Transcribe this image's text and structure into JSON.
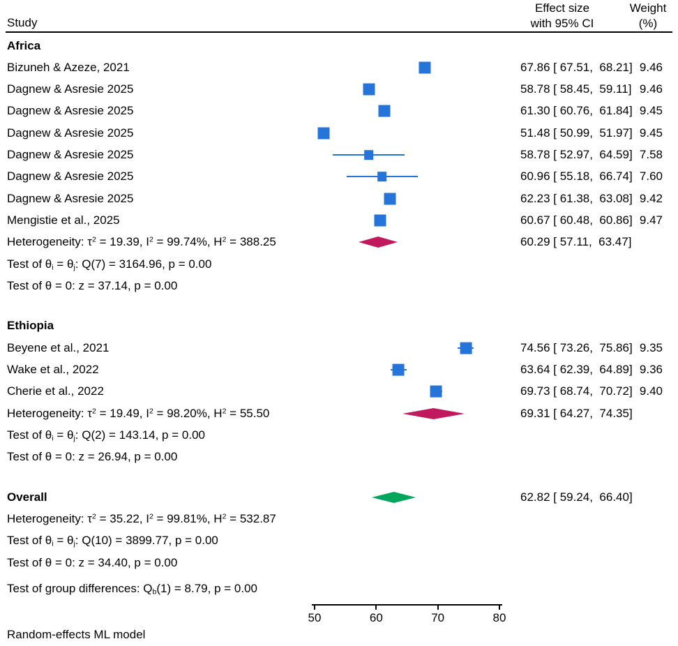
{
  "header": {
    "study_label": "Study",
    "effect_label_line1": "Effect size",
    "effect_label_line2": "with 95% CI",
    "weight_label_line1": "Weight",
    "weight_label_line2": "(%)"
  },
  "footer": {
    "model_label": "Random-effects ML model"
  },
  "colors": {
    "marker": "#2574d9",
    "subgroup_diamond": "#c0195e",
    "overall_diamond": "#00a65c",
    "axis": "#000000"
  },
  "chart_data": {
    "type": "forest",
    "x_axis": {
      "ticks": [
        50,
        60,
        70,
        80
      ],
      "min": 50,
      "max": 80
    },
    "groups": [
      {
        "name": "Africa",
        "studies": [
          {
            "label": "Bizuneh & Azeze, 2021",
            "effect": 67.86,
            "lo": 67.51,
            "hi": 68.21,
            "ci_text": "67.86 [ 67.51,  68.21]",
            "weight": "9.46"
          },
          {
            "label": "Dagnew & Asresie 2025",
            "effect": 58.78,
            "lo": 58.45,
            "hi": 59.11,
            "ci_text": "58.78 [ 58.45,  59.11]",
            "weight": "9.46"
          },
          {
            "label": "Dagnew & Asresie 2025",
            "effect": 61.3,
            "lo": 60.76,
            "hi": 61.84,
            "ci_text": "61.30 [ 60.76,  61.84]",
            "weight": "9.45"
          },
          {
            "label": "Dagnew & Asresie 2025",
            "effect": 51.48,
            "lo": 50.99,
            "hi": 51.97,
            "ci_text": "51.48 [ 50.99,  51.97]",
            "weight": "9.45"
          },
          {
            "label": "Dagnew & Asresie 2025",
            "effect": 58.78,
            "lo": 52.97,
            "hi": 64.59,
            "ci_text": "58.78 [ 52.97,  64.59]",
            "weight": "7.58"
          },
          {
            "label": "Dagnew & Asresie 2025",
            "effect": 60.96,
            "lo": 55.18,
            "hi": 66.74,
            "ci_text": "60.96 [ 55.18,  66.74]",
            "weight": "7.60"
          },
          {
            "label": "Dagnew & Asresie 2025",
            "effect": 62.23,
            "lo": 61.38,
            "hi": 63.08,
            "ci_text": "62.23 [ 61.38,  63.08]",
            "weight": "9.42"
          },
          {
            "label": "Mengistie et al., 2025",
            "effect": 60.67,
            "lo": 60.48,
            "hi": 60.86,
            "ci_text": "60.67 [ 60.48,  60.86]",
            "weight": "9.47"
          }
        ],
        "summary": {
          "heterogeneity": "Heterogeneity: τ{sup:2} = 19.39, I{sup:2} = 99.74%, H{sup:2} = 388.25",
          "effect": 60.29,
          "lo": 57.11,
          "hi": 63.47,
          "ci_text": "60.29 [ 57.11,  63.47]",
          "tests": [
            "Test of θ{sub:i} = θ{sub:j}: Q(7) = 3164.96, p = 0.00",
            "Test of θ = 0: z = 37.14, p = 0.00"
          ]
        }
      },
      {
        "name": "Ethiopia",
        "studies": [
          {
            "label": "Beyene et al., 2021",
            "effect": 74.56,
            "lo": 73.26,
            "hi": 75.86,
            "ci_text": "74.56 [ 73.26,  75.86]",
            "weight": "9.35"
          },
          {
            "label": "Wake et al., 2022",
            "effect": 63.64,
            "lo": 62.39,
            "hi": 64.89,
            "ci_text": "63.64 [ 62.39,  64.89]",
            "weight": "9.36"
          },
          {
            "label": "Cherie et al., 2022",
            "effect": 69.73,
            "lo": 68.74,
            "hi": 70.72,
            "ci_text": "69.73 [ 68.74,  70.72]",
            "weight": "9.40"
          }
        ],
        "summary": {
          "heterogeneity": "Heterogeneity: τ{sup:2} = 19.49, I{sup:2} = 98.20%, H{sup:2} = 55.50",
          "effect": 69.31,
          "lo": 64.27,
          "hi": 74.35,
          "ci_text": "69.31 [ 64.27,  74.35]",
          "tests": [
            "Test of θ{sub:i} = θ{sub:j}: Q(2) = 143.14, p = 0.00",
            "Test of θ = 0: z = 26.94, p = 0.00"
          ]
        }
      }
    ],
    "overall": {
      "label": "Overall",
      "effect": 62.82,
      "lo": 59.24,
      "hi": 66.4,
      "ci_text": "62.82 [ 59.24,  66.40]",
      "heterogeneity": "Heterogeneity: τ{sup:2} = 35.22, I{sup:2} = 99.81%, H{sup:2} = 532.87",
      "tests": [
        "Test of θ{sub:i} = θ{sub:j}: Q(10) = 3899.77, p = 0.00",
        "Test of θ = 0: z = 34.40, p = 0.00"
      ],
      "group_diff": "Test of group differences: Q{sub:b}(1) = 8.79, p = 0.00"
    }
  }
}
